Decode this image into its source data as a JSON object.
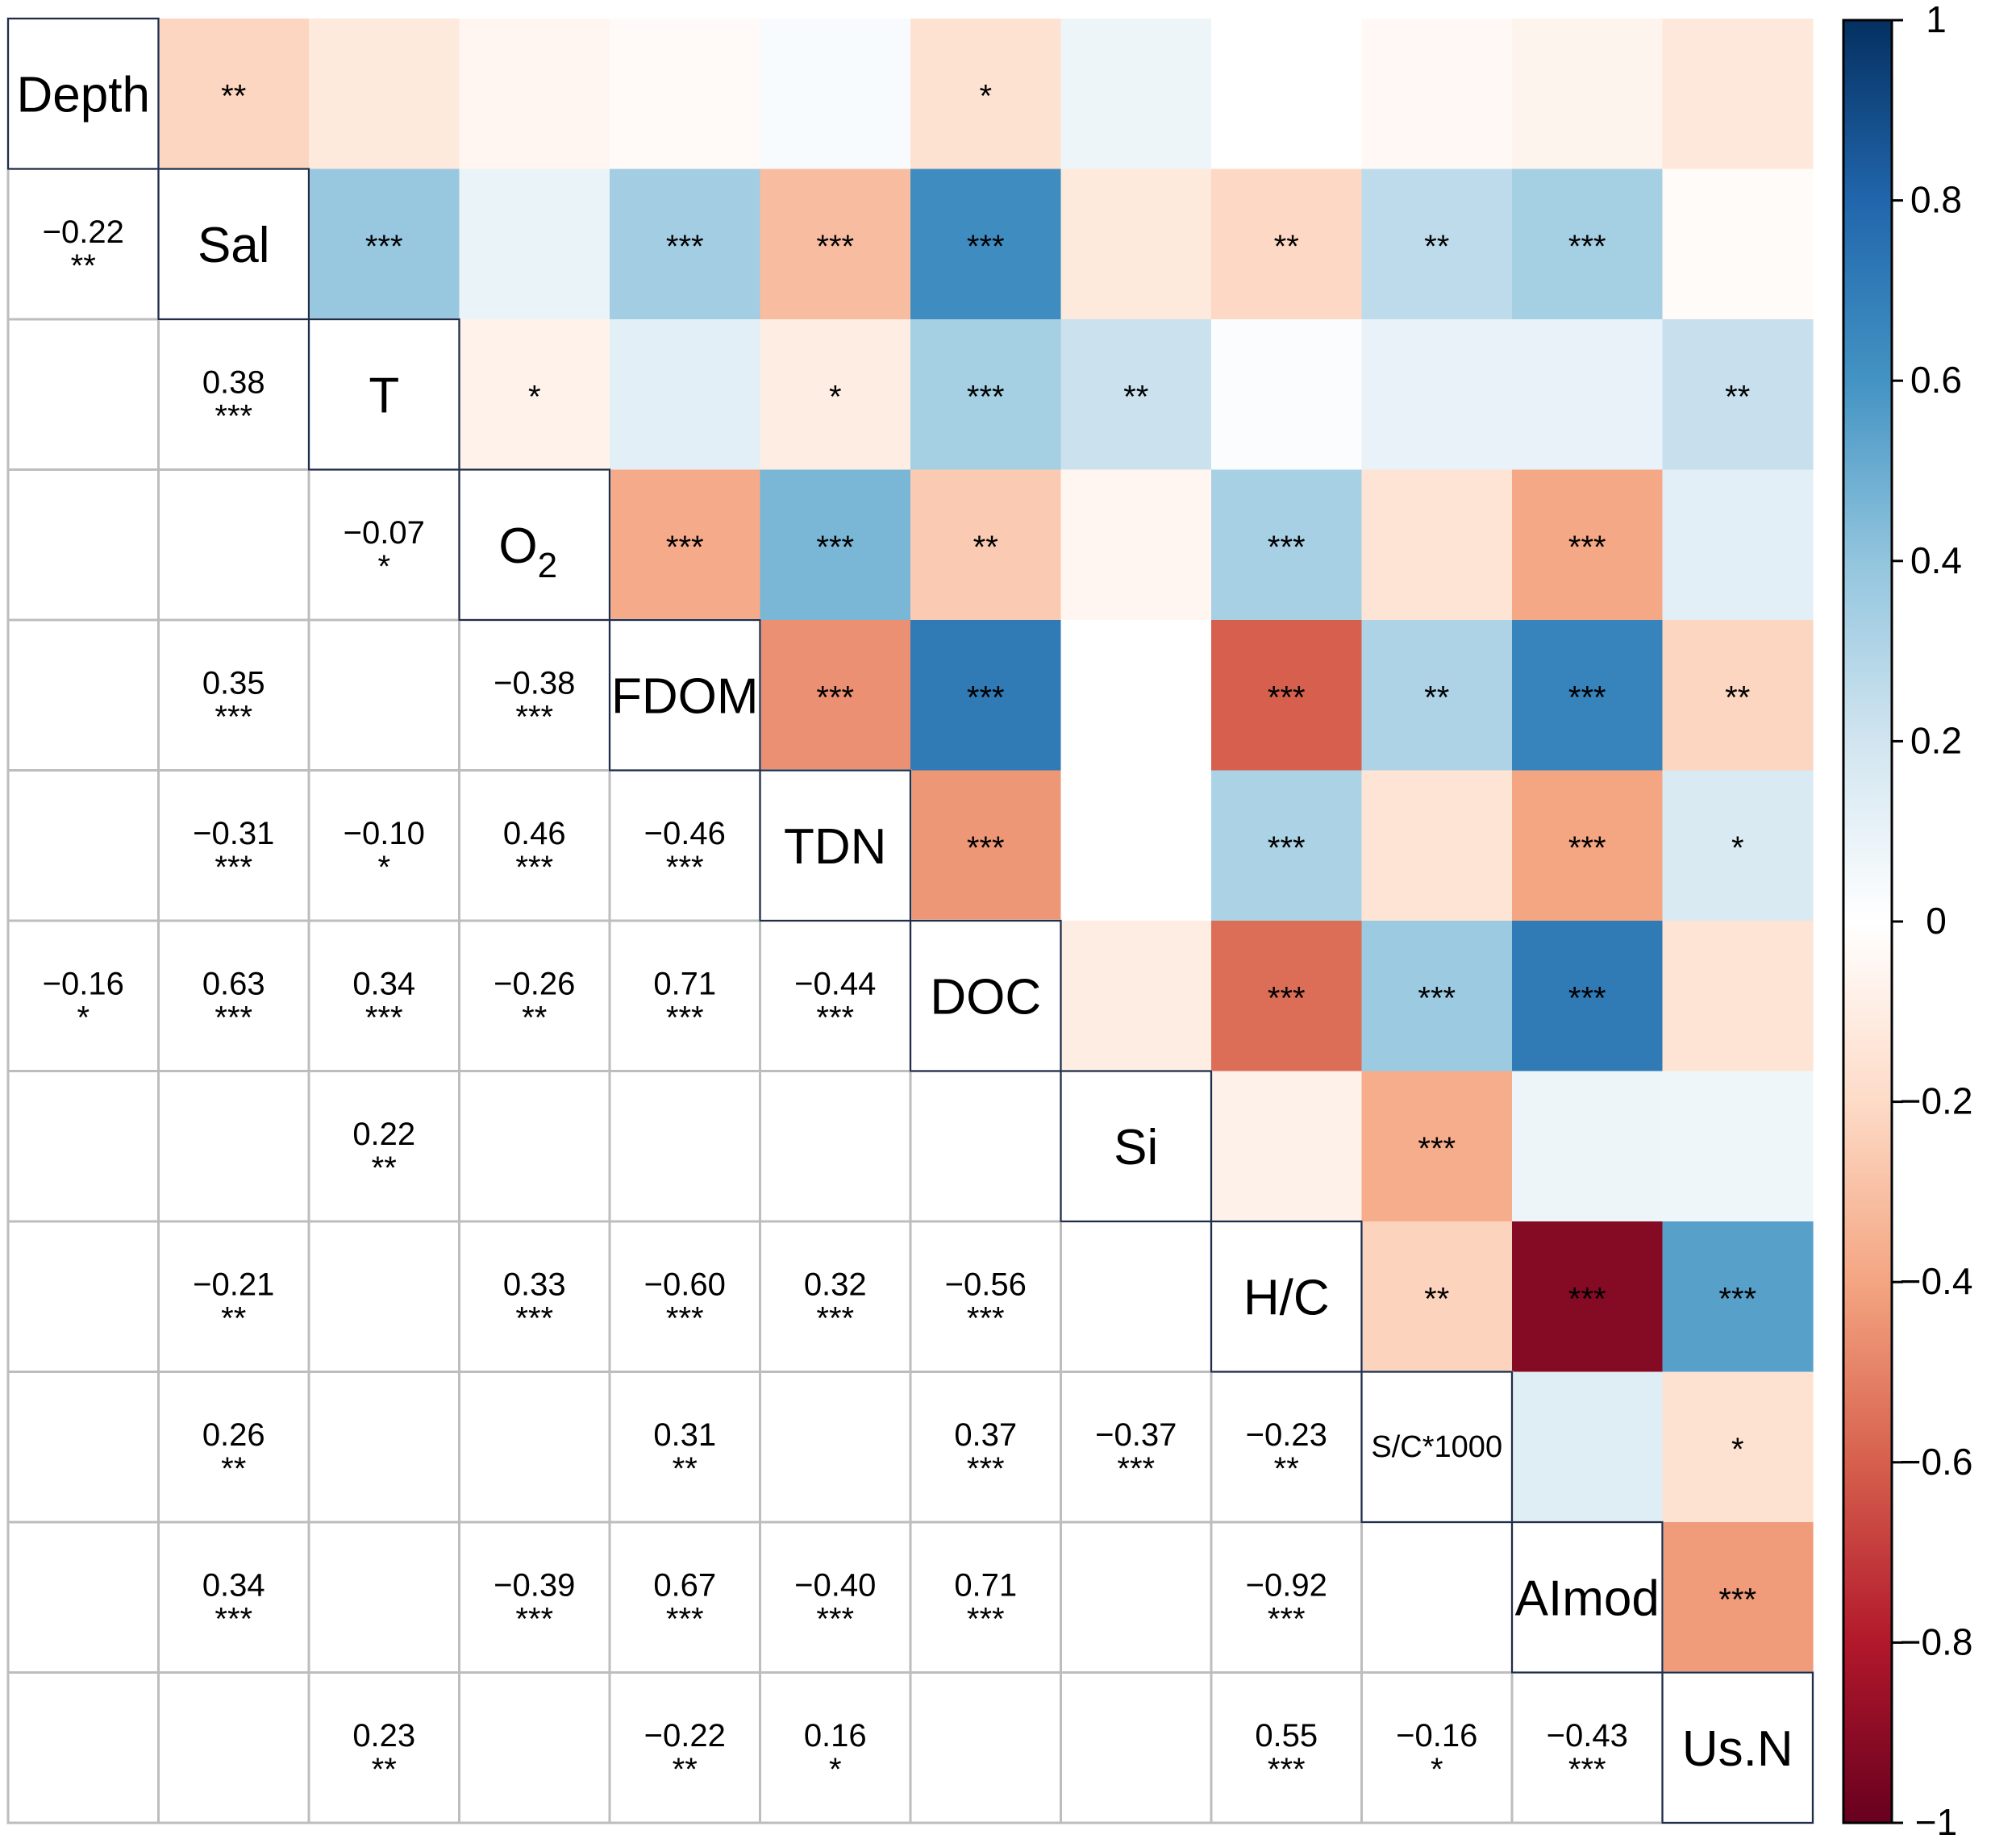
{
  "chart_data": {
    "type": "heatmap",
    "subtype": "correlation-matrix (mixed: upper = colored squares with significance stars, lower = coefficient numbers with significance stars)",
    "variables": [
      "Depth",
      "Sal",
      "T",
      "O2",
      "FDOM",
      "TDN",
      "DOC",
      "Si",
      "H/C",
      "S/C*1000",
      "AImod",
      "Us.N"
    ],
    "variable_labels": [
      {
        "main": "Depth",
        "sub": ""
      },
      {
        "main": "Sal",
        "sub": ""
      },
      {
        "main": "T",
        "sub": ""
      },
      {
        "main": "O",
        "sub": "2"
      },
      {
        "main": "FDOM",
        "sub": ""
      },
      {
        "main": "TDN",
        "sub": ""
      },
      {
        "main": "DOC",
        "sub": ""
      },
      {
        "main": "Si",
        "sub": ""
      },
      {
        "main": "H/C",
        "sub": ""
      },
      {
        "main": "S/C*1000",
        "sub": ""
      },
      {
        "main": "AImod",
        "sub": ""
      },
      {
        "main": "Us.N",
        "sub": ""
      }
    ],
    "matrix": [
      [
        1,
        -0.22,
        -0.12,
        -0.05,
        -0.03,
        0.03,
        -0.16,
        0.08,
        0.0,
        -0.04,
        -0.06,
        -0.13
      ],
      [
        -0.22,
        1,
        0.38,
        0.09,
        0.35,
        -0.31,
        0.63,
        -0.12,
        -0.21,
        0.26,
        0.34,
        -0.02
      ],
      [
        -0.12,
        0.38,
        1,
        -0.07,
        0.12,
        -0.1,
        0.34,
        0.22,
        0.02,
        0.1,
        0.1,
        0.23
      ],
      [
        -0.05,
        0.09,
        -0.07,
        1,
        -0.38,
        0.46,
        -0.26,
        -0.05,
        0.33,
        -0.15,
        -0.39,
        0.12
      ],
      [
        -0.03,
        0.35,
        0.12,
        -0.38,
        1,
        -0.46,
        0.71,
        0.0,
        -0.6,
        0.31,
        0.67,
        -0.22
      ],
      [
        0.03,
        -0.31,
        -0.1,
        0.46,
        -0.46,
        1,
        -0.44,
        0.0,
        0.32,
        -0.15,
        -0.4,
        0.16
      ],
      [
        -0.16,
        0.63,
        0.34,
        -0.26,
        0.71,
        -0.44,
        1,
        -0.1,
        -0.56,
        0.37,
        0.71,
        -0.15
      ],
      [
        0.08,
        -0.12,
        0.22,
        -0.05,
        0.0,
        0.0,
        -0.1,
        1,
        -0.08,
        -0.37,
        0.08,
        0.07
      ],
      [
        0.0,
        -0.21,
        0.02,
        0.33,
        -0.6,
        0.32,
        -0.56,
        -0.08,
        1,
        -0.23,
        -0.92,
        0.55
      ],
      [
        -0.04,
        0.26,
        0.1,
        -0.15,
        0.31,
        -0.15,
        0.37,
        -0.37,
        -0.23,
        1,
        0.14,
        -0.16
      ],
      [
        -0.06,
        0.34,
        0.1,
        -0.39,
        0.67,
        -0.4,
        0.71,
        0.08,
        -0.92,
        0.14,
        1,
        -0.43
      ],
      [
        -0.13,
        -0.02,
        0.23,
        0.12,
        -0.22,
        0.16,
        -0.15,
        0.07,
        0.55,
        -0.16,
        -0.43,
        1
      ]
    ],
    "significance": [
      [
        "",
        "**",
        "",
        "",
        "",
        "",
        "*",
        "",
        "",
        "",
        "",
        ""
      ],
      [
        "**",
        "",
        "***",
        "",
        "***",
        "***",
        "***",
        "",
        "**",
        "**",
        "***",
        ""
      ],
      [
        "",
        "***",
        "",
        "*",
        "",
        "*",
        "***",
        "**",
        "",
        "",
        "",
        "**"
      ],
      [
        "",
        "",
        "*",
        "",
        "***",
        "***",
        "**",
        "",
        "***",
        "",
        "***",
        ""
      ],
      [
        "",
        "***",
        "",
        "***",
        "",
        "***",
        "***",
        "",
        "***",
        "**",
        "***",
        "**"
      ],
      [
        "",
        "***",
        "*",
        "***",
        "***",
        "",
        "***",
        "",
        "***",
        "",
        "***",
        "*"
      ],
      [
        "*",
        "***",
        "***",
        "**",
        "***",
        "***",
        "",
        "",
        "***",
        "***",
        "***",
        ""
      ],
      [
        "",
        "",
        "**",
        "",
        "",
        "",
        "",
        "",
        "",
        "***",
        "",
        ""
      ],
      [
        "",
        "**",
        "",
        "***",
        "***",
        "***",
        "***",
        "",
        "",
        "**",
        "***",
        "***"
      ],
      [
        "",
        "**",
        "",
        "",
        "**",
        "",
        "***",
        "***",
        "**",
        "",
        "",
        "*"
      ],
      [
        "",
        "***",
        "",
        "***",
        "***",
        "***",
        "***",
        "",
        "***",
        "",
        "",
        "***"
      ],
      [
        "",
        "",
        "**",
        "",
        "**",
        "*",
        "",
        "",
        "***",
        "*",
        "***",
        ""
      ]
    ],
    "lower_labels": [
      {
        "row": 1,
        "col": 0,
        "text": "−0.22"
      },
      {
        "row": 2,
        "col": 1,
        "text": "0.38"
      },
      {
        "row": 3,
        "col": 2,
        "text": "−0.07"
      },
      {
        "row": 4,
        "col": 1,
        "text": "0.35"
      },
      {
        "row": 4,
        "col": 3,
        "text": "−0.38"
      },
      {
        "row": 5,
        "col": 1,
        "text": "−0.31"
      },
      {
        "row": 5,
        "col": 2,
        "text": "−0.10"
      },
      {
        "row": 5,
        "col": 3,
        "text": "0.46"
      },
      {
        "row": 5,
        "col": 4,
        "text": "−0.46"
      },
      {
        "row": 6,
        "col": 0,
        "text": "−0.16"
      },
      {
        "row": 6,
        "col": 1,
        "text": "0.63"
      },
      {
        "row": 6,
        "col": 2,
        "text": "0.34"
      },
      {
        "row": 6,
        "col": 3,
        "text": "−0.26"
      },
      {
        "row": 6,
        "col": 4,
        "text": "0.71"
      },
      {
        "row": 6,
        "col": 5,
        "text": "−0.44"
      },
      {
        "row": 7,
        "col": 2,
        "text": "0.22"
      },
      {
        "row": 8,
        "col": 1,
        "text": "−0.21"
      },
      {
        "row": 8,
        "col": 3,
        "text": "0.33"
      },
      {
        "row": 8,
        "col": 4,
        "text": "−0.60"
      },
      {
        "row": 8,
        "col": 5,
        "text": "0.32"
      },
      {
        "row": 8,
        "col": 6,
        "text": "−0.56"
      },
      {
        "row": 9,
        "col": 1,
        "text": "0.26"
      },
      {
        "row": 9,
        "col": 4,
        "text": "0.31"
      },
      {
        "row": 9,
        "col": 6,
        "text": "0.37"
      },
      {
        "row": 9,
        "col": 7,
        "text": "−0.37"
      },
      {
        "row": 9,
        "col": 8,
        "text": "−0.23"
      },
      {
        "row": 10,
        "col": 1,
        "text": "0.34"
      },
      {
        "row": 10,
        "col": 3,
        "text": "−0.39"
      },
      {
        "row": 10,
        "col": 4,
        "text": "0.67"
      },
      {
        "row": 10,
        "col": 5,
        "text": "−0.40"
      },
      {
        "row": 10,
        "col": 6,
        "text": "0.71"
      },
      {
        "row": 10,
        "col": 8,
        "text": "−0.92"
      },
      {
        "row": 11,
        "col": 2,
        "text": "0.23"
      },
      {
        "row": 11,
        "col": 4,
        "text": "−0.22"
      },
      {
        "row": 11,
        "col": 5,
        "text": "0.16"
      },
      {
        "row": 11,
        "col": 8,
        "text": "0.55"
      },
      {
        "row": 11,
        "col": 9,
        "text": "−0.16"
      },
      {
        "row": 11,
        "col": 10,
        "text": "−0.43"
      }
    ],
    "colorbar": {
      "range": [
        -1,
        1
      ],
      "ticks": [
        "1",
        "0.8",
        "0.6",
        "0.4",
        "0.2",
        "0",
        "−0.2",
        "−0.4",
        "−0.6",
        "−0.8",
        "−1"
      ],
      "tick_values": [
        1,
        0.8,
        0.6,
        0.4,
        0.2,
        0,
        -0.2,
        -0.4,
        -0.6,
        -0.8,
        -1
      ],
      "colors": [
        "#67001F",
        "#B2182B",
        "#D6604D",
        "#F4A582",
        "#FDDBC7",
        "#FFFFFF",
        "#D1E5F0",
        "#92C5DE",
        "#4393C3",
        "#2166AC",
        "#053061"
      ],
      "color_positions": [
        -1,
        -0.8,
        -0.6,
        -0.4,
        -0.2,
        0,
        0.2,
        0.4,
        0.6,
        0.8,
        1
      ]
    }
  }
}
